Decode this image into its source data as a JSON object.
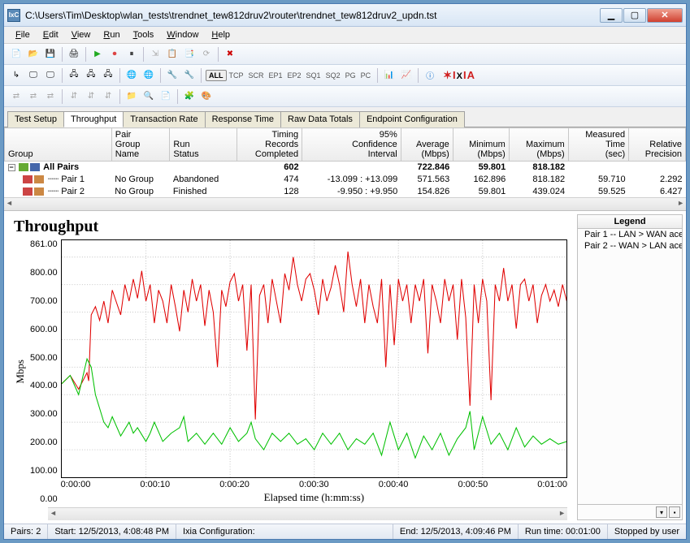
{
  "window": {
    "title": "C:\\Users\\Tim\\Desktop\\wlan_tests\\trendnet_tew812druv2\\router\\trendnet_tew812druv2_updn.tst",
    "icon_text": "IxC"
  },
  "menu": [
    "File",
    "Edit",
    "View",
    "Run",
    "Tools",
    "Window",
    "Help"
  ],
  "toolbar2_text_buttons": [
    "ALL",
    "TCP",
    "SCR",
    "EP1",
    "EP2",
    "SQ1",
    "SQ2",
    "PG",
    "PC"
  ],
  "brand": "IXIA",
  "tabs": {
    "items": [
      "Test Setup",
      "Throughput",
      "Transaction Rate",
      "Response Time",
      "Raw Data Totals",
      "Endpoint Configuration"
    ],
    "active_index": 1
  },
  "grid": {
    "columns": [
      "Group",
      "Pair Group Name",
      "Run Status",
      "Timing Records Completed",
      "95% Confidence Interval",
      "Average (Mbps)",
      "Minimum (Mbps)",
      "Maximum (Mbps)",
      "Measured Time (sec)",
      "Relative Precision"
    ],
    "rows": [
      {
        "bold": true,
        "icon_color1": "#6a3",
        "icon_color2": "#46a",
        "group": "All Pairs",
        "pgn": "",
        "status": "",
        "trc": "602",
        "ci": "",
        "avg": "722.846",
        "min": "59.801",
        "max": "818.182",
        "mt": "",
        "rp": ""
      },
      {
        "bold": false,
        "icon_color1": "#c44",
        "icon_color2": "#c84",
        "group": "Pair 1",
        "pgn": "No Group",
        "status": "Abandoned",
        "trc": "474",
        "ci": "-13.099 : +13.099",
        "avg": "571.563",
        "min": "162.896",
        "max": "818.182",
        "mt": "59.710",
        "rp": "2.292"
      },
      {
        "bold": false,
        "icon_color1": "#c44",
        "icon_color2": "#c84",
        "group": "Pair 2",
        "pgn": "No Group",
        "status": "Finished",
        "trc": "128",
        "ci": "-9.950 : +9.950",
        "avg": "154.826",
        "min": "59.801",
        "max": "439.024",
        "mt": "59.525",
        "rp": "6.427"
      }
    ]
  },
  "chart": {
    "title": "Throughput",
    "title_fontsize": 20,
    "ylabel": "Mbps",
    "xlabel": "Elapsed time (h:mm:ss)",
    "xlim": [
      0,
      60
    ],
    "ylim": [
      0,
      861
    ],
    "y_ticks": [
      "861.00",
      "800.00",
      "700.00",
      "600.00",
      "500.00",
      "400.00",
      "300.00",
      "200.00",
      "100.00",
      "0.00"
    ],
    "x_ticks": [
      "0:00:00",
      "0:00:10",
      "0:00:20",
      "0:00:30",
      "0:00:40",
      "0:00:50",
      "0:01:00"
    ],
    "background_color": "#ffffff",
    "grid_color": "#c8c8c8",
    "series": [
      {
        "name": "Pair 1 -- LAN > WAN ace",
        "color": "#e00000",
        "linewidth": 1,
        "data": [
          [
            0,
            340
          ],
          [
            1,
            370
          ],
          [
            2,
            320
          ],
          [
            3,
            380
          ],
          [
            3.2,
            350
          ],
          [
            3.5,
            590
          ],
          [
            4,
            620
          ],
          [
            4.5,
            570
          ],
          [
            5,
            640
          ],
          [
            5.5,
            560
          ],
          [
            6,
            680
          ],
          [
            7,
            590
          ],
          [
            7.5,
            700
          ],
          [
            8,
            640
          ],
          [
            8.5,
            720
          ],
          [
            9,
            650
          ],
          [
            9.5,
            750
          ],
          [
            10,
            640
          ],
          [
            10.5,
            700
          ],
          [
            11,
            560
          ],
          [
            11.5,
            680
          ],
          [
            12,
            640
          ],
          [
            12.5,
            560
          ],
          [
            13,
            700
          ],
          [
            13.5,
            620
          ],
          [
            14,
            530
          ],
          [
            14.5,
            680
          ],
          [
            15,
            600
          ],
          [
            15.5,
            720
          ],
          [
            16,
            640
          ],
          [
            16.5,
            700
          ],
          [
            17,
            550
          ],
          [
            17.5,
            680
          ],
          [
            18,
            600
          ],
          [
            18.5,
            400
          ],
          [
            19,
            680
          ],
          [
            19.5,
            620
          ],
          [
            20,
            710
          ],
          [
            20.5,
            740
          ],
          [
            21,
            640
          ],
          [
            21.5,
            700
          ],
          [
            22,
            460
          ],
          [
            22.5,
            700
          ],
          [
            23,
            210
          ],
          [
            23.5,
            660
          ],
          [
            24,
            700
          ],
          [
            24.5,
            560
          ],
          [
            25,
            720
          ],
          [
            25.5,
            640
          ],
          [
            26,
            560
          ],
          [
            26.5,
            740
          ],
          [
            27,
            680
          ],
          [
            27.5,
            800
          ],
          [
            28,
            700
          ],
          [
            28.5,
            640
          ],
          [
            29,
            720
          ],
          [
            29.5,
            740
          ],
          [
            30,
            680
          ],
          [
            30.5,
            590
          ],
          [
            31,
            720
          ],
          [
            31.5,
            640
          ],
          [
            32,
            690
          ],
          [
            32.5,
            770
          ],
          [
            33,
            700
          ],
          [
            33.5,
            600
          ],
          [
            34,
            820
          ],
          [
            34.5,
            700
          ],
          [
            35,
            620
          ],
          [
            35.5,
            720
          ],
          [
            36,
            560
          ],
          [
            36.5,
            700
          ],
          [
            37,
            620
          ],
          [
            37.5,
            560
          ],
          [
            38,
            720
          ],
          [
            38.5,
            400
          ],
          [
            39,
            700
          ],
          [
            39.5,
            480
          ],
          [
            40,
            720
          ],
          [
            40.5,
            640
          ],
          [
            41,
            700
          ],
          [
            41.5,
            560
          ],
          [
            42,
            700
          ],
          [
            42.5,
            640
          ],
          [
            43,
            720
          ],
          [
            43.5,
            450
          ],
          [
            44,
            700
          ],
          [
            44.5,
            640
          ],
          [
            45,
            560
          ],
          [
            45.5,
            720
          ],
          [
            46,
            640
          ],
          [
            46.5,
            700
          ],
          [
            47,
            500
          ],
          [
            47.5,
            720
          ],
          [
            48,
            580
          ],
          [
            48.5,
            260
          ],
          [
            49,
            700
          ],
          [
            49.5,
            560
          ],
          [
            50,
            720
          ],
          [
            50.5,
            640
          ],
          [
            51,
            280
          ],
          [
            51.5,
            700
          ],
          [
            52,
            640
          ],
          [
            52.5,
            760
          ],
          [
            53,
            640
          ],
          [
            53.5,
            700
          ],
          [
            54,
            540
          ],
          [
            54.5,
            700
          ],
          [
            55,
            720
          ],
          [
            55.5,
            640
          ],
          [
            56,
            700
          ],
          [
            56.5,
            560
          ],
          [
            57,
            660
          ],
          [
            57.5,
            700
          ],
          [
            58,
            640
          ],
          [
            58.5,
            680
          ],
          [
            59,
            620
          ],
          [
            59.5,
            700
          ],
          [
            60,
            640
          ]
        ]
      },
      {
        "name": "Pair 2 -- WAN > LAN ace",
        "color": "#00c000",
        "linewidth": 1,
        "data": [
          [
            0,
            340
          ],
          [
            1,
            370
          ],
          [
            2,
            300
          ],
          [
            3,
            430
          ],
          [
            3.5,
            400
          ],
          [
            4,
            300
          ],
          [
            4.5,
            250
          ],
          [
            5,
            200
          ],
          [
            5.5,
            180
          ],
          [
            6,
            220
          ],
          [
            7,
            150
          ],
          [
            8,
            200
          ],
          [
            8.5,
            160
          ],
          [
            9,
            180
          ],
          [
            10,
            130
          ],
          [
            10.5,
            160
          ],
          [
            11,
            200
          ],
          [
            12,
            130
          ],
          [
            13,
            160
          ],
          [
            14,
            180
          ],
          [
            14.5,
            220
          ],
          [
            15,
            130
          ],
          [
            16,
            160
          ],
          [
            17,
            120
          ],
          [
            18,
            160
          ],
          [
            19,
            120
          ],
          [
            20,
            180
          ],
          [
            21,
            130
          ],
          [
            22,
            160
          ],
          [
            22.5,
            200
          ],
          [
            23,
            140
          ],
          [
            24,
            100
          ],
          [
            25,
            160
          ],
          [
            26,
            130
          ],
          [
            27,
            160
          ],
          [
            28,
            120
          ],
          [
            29,
            140
          ],
          [
            30,
            100
          ],
          [
            31,
            160
          ],
          [
            32,
            120
          ],
          [
            33,
            160
          ],
          [
            34,
            100
          ],
          [
            35,
            140
          ],
          [
            36,
            120
          ],
          [
            37,
            160
          ],
          [
            38,
            80
          ],
          [
            39,
            200
          ],
          [
            40,
            100
          ],
          [
            41,
            160
          ],
          [
            42,
            70
          ],
          [
            43,
            150
          ],
          [
            44,
            100
          ],
          [
            45,
            160
          ],
          [
            46,
            80
          ],
          [
            47,
            140
          ],
          [
            48,
            180
          ],
          [
            48.5,
            240
          ],
          [
            49,
            100
          ],
          [
            50,
            220
          ],
          [
            51,
            120
          ],
          [
            52,
            160
          ],
          [
            53,
            100
          ],
          [
            54,
            180
          ],
          [
            55,
            110
          ],
          [
            56,
            150
          ],
          [
            57,
            120
          ],
          [
            58,
            140
          ],
          [
            59,
            120
          ],
          [
            60,
            130
          ]
        ]
      }
    ]
  },
  "legend": {
    "title": "Legend",
    "items": [
      {
        "color": "#e00000",
        "label": "Pair 1 -- LAN > WAN ace"
      },
      {
        "color": "#00c000",
        "label": "Pair 2 -- WAN > LAN ace"
      }
    ]
  },
  "status": {
    "pairs_label": "Pairs:",
    "pairs": "2",
    "start_label": "Start:",
    "start": "12/5/2013, 4:08:48 PM",
    "ixia_label": "Ixia Configuration:",
    "end_label": "End:",
    "end": "12/5/2013, 4:09:46 PM",
    "run_label": "Run time:",
    "run": "00:01:00",
    "stopped": "Stopped by user"
  }
}
